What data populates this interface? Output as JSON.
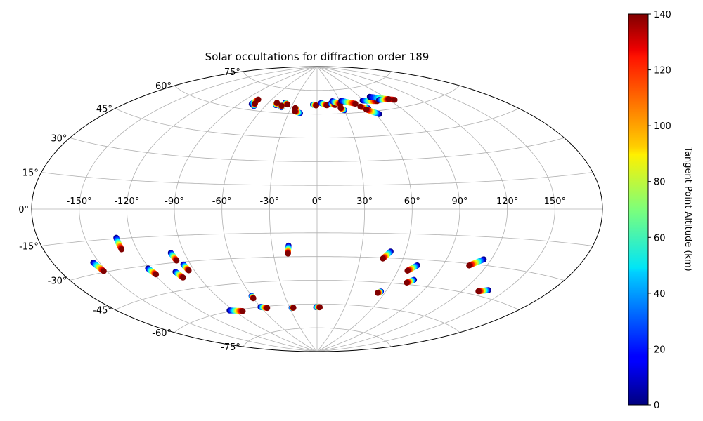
{
  "chart_data": {
    "type": "scatter",
    "projection": "aitoff",
    "title": "Solar occultations for diffraction order 189",
    "longitude_ticks": [
      -150,
      -120,
      -90,
      -60,
      -30,
      0,
      30,
      60,
      90,
      120,
      150
    ],
    "longitude_tick_labels": [
      "-150°",
      "-120°",
      "-90°",
      "-60°",
      "-30°",
      "0°",
      "30°",
      "60°",
      "90°",
      "120°",
      "150°"
    ],
    "latitude_ticks": [
      -75,
      -60,
      -45,
      -30,
      -15,
      0,
      15,
      30,
      45,
      60,
      75
    ],
    "latitude_tick_labels": [
      "-75°",
      "-60°",
      "-45°",
      "-30°",
      "-15°",
      "0°",
      "15°",
      "30°",
      "45°",
      "60°",
      "75°"
    ],
    "grid": true,
    "colorbar": {
      "label": "Tangent Point Altitude (km)",
      "range": [
        0,
        140
      ],
      "ticks": [
        0,
        20,
        40,
        60,
        80,
        100,
        120,
        140
      ],
      "tick_labels": [
        "0",
        "20",
        "40",
        "60",
        "80",
        "100",
        "120",
        "140"
      ],
      "colormap": "jet"
    },
    "tracks": [
      {
        "lon_start": -77,
        "lat_start": 63.5,
        "lon_end": -76,
        "lat_end": 66.5
      },
      {
        "lon_start": -72,
        "lat_start": 62.5,
        "lon_end": -74,
        "lat_end": 64.0
      },
      {
        "lon_start": -49,
        "lat_start": 64.5,
        "lon_end": -50,
        "lat_end": 66.0
      },
      {
        "lon_start": -40,
        "lat_start": 66.5,
        "lon_end": -36,
        "lat_end": 65.5
      },
      {
        "lon_start": -41,
        "lat_start": 63.5,
        "lon_end": -42,
        "lat_end": 64.5
      },
      {
        "lon_start": -23,
        "lat_start": 63.0,
        "lon_end": -25,
        "lat_end": 63.5
      },
      {
        "lon_start": -18,
        "lat_start": 60.5,
        "lon_end": -24,
        "lat_end": 61.5
      },
      {
        "lon_start": -5,
        "lat_start": 66.0,
        "lon_end": -1,
        "lat_end": 65.5
      },
      {
        "lon_start": 5,
        "lat_start": 67.0,
        "lon_end": 12,
        "lat_end": 65.5
      },
      {
        "lon_start": 17,
        "lat_start": 66.5,
        "lon_end": 22,
        "lat_end": 65.5
      },
      {
        "lon_start": 20,
        "lat_start": 68.0,
        "lon_end": 29,
        "lat_end": 66.0
      },
      {
        "lon_start": 30,
        "lat_start": 62.0,
        "lon_end": 27,
        "lat_end": 63.5
      },
      {
        "lon_start": 32,
        "lat_start": 68.0,
        "lon_end": 47,
        "lat_end": 65.5
      },
      {
        "lon_start": 57,
        "lat_start": 62.0,
        "lon_end": 50,
        "lat_end": 63.5
      },
      {
        "lon_start": 63,
        "lat_start": 58.0,
        "lon_end": 54,
        "lat_end": 61.5
      },
      {
        "lon_start": 59,
        "lat_start": 67.0,
        "lon_end": 75,
        "lat_end": 65.5
      },
      {
        "lon_start": 73,
        "lat_start": 68.5,
        "lon_end": 96,
        "lat_end": 64.5
      },
      {
        "lon_start": 79,
        "lat_start": 66.0,
        "lon_end": 91,
        "lat_end": 65.5
      },
      {
        "lon_start": -154,
        "lat_start": -25.0,
        "lon_end": -152,
        "lat_end": -29.5
      },
      {
        "lon_start": -130,
        "lat_start": -14.5,
        "lon_end": -130,
        "lat_end": -20.5
      },
      {
        "lon_start": -121,
        "lat_start": -31.5,
        "lon_end": -119,
        "lat_end": -35.0
      },
      {
        "lon_start": -104,
        "lat_start": -35.0,
        "lon_end": -102,
        "lat_end": -38.5
      },
      {
        "lon_start": -99,
        "lat_start": -24.5,
        "lon_end": -98,
        "lat_end": -29.0
      },
      {
        "lon_start": -95,
        "lat_start": -31.5,
        "lon_end": -94,
        "lat_end": -35.0
      },
      {
        "lon_start": -19,
        "lat_start": -23.0,
        "lon_end": -20,
        "lat_end": -28.0
      },
      {
        "lon_start": 50,
        "lat_start": -26.0,
        "lon_end": 46,
        "lat_end": -30.5
      },
      {
        "lon_start": 72,
        "lat_start": -33.5,
        "lon_end": 67,
        "lat_end": -37.0
      },
      {
        "lon_start": 76,
        "lat_start": -42.0,
        "lon_end": 72,
        "lat_end": -44.0
      },
      {
        "lon_start": 56,
        "lat_start": -50.5,
        "lon_end": 54,
        "lat_end": -51.5
      },
      {
        "lon_start": 115,
        "lat_start": -27.0,
        "lon_end": 108,
        "lat_end": -31.0
      },
      {
        "lon_start": 138,
        "lat_start": -41.5,
        "lon_end": 132,
        "lat_end": -43.0
      },
      {
        "lon_start": -94,
        "lat_start": -59.5,
        "lon_end": -82,
        "lat_end": -61.0
      },
      {
        "lon_start": -60,
        "lat_start": -53.0,
        "lon_end": -60,
        "lat_end": -54.5
      },
      {
        "lon_start": -60,
        "lat_start": -60.0,
        "lon_end": -54,
        "lat_end": -61.0
      },
      {
        "lon_start": -28,
        "lat_start": -62.0,
        "lon_end": -26,
        "lat_end": -62.0
      },
      {
        "lon_start": -1,
        "lat_start": -62.0,
        "lon_end": 3,
        "lat_end": -62.0
      }
    ]
  }
}
